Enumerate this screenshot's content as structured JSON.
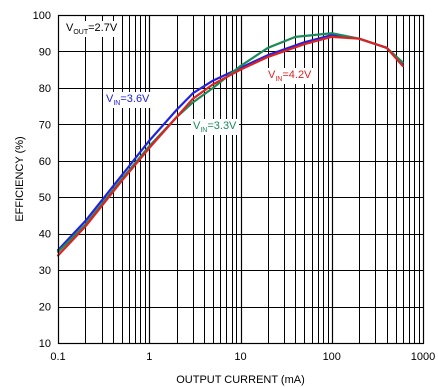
{
  "chart_data": {
    "type": "line",
    "xlabel": "OUTPUT CURRENT (mA)",
    "ylabel": "EFFICIENCY (%)",
    "xscale": "log",
    "xlim": [
      0.1,
      1000
    ],
    "ylim": [
      10,
      100
    ],
    "grid": true,
    "x_ticks": [
      "0.1",
      "1",
      "10",
      "100",
      "1000"
    ],
    "y_ticks": [
      "10",
      "20",
      "30",
      "40",
      "50",
      "60",
      "70",
      "80",
      "90",
      "100"
    ],
    "annotations": [
      {
        "main": "V",
        "sub": "OUT",
        "rest": "=2.7V",
        "color": "#000000"
      },
      {
        "main": "V",
        "sub": "IN",
        "rest": "=3.6V",
        "color": "#2222dd"
      },
      {
        "main": "V",
        "sub": "IN",
        "rest": "=3.3V",
        "color": "#1a8a5a"
      },
      {
        "main": "V",
        "sub": "IN",
        "rest": "=4.2V",
        "color": "#dd2222"
      }
    ],
    "series": [
      {
        "label": "VIN=3.6V",
        "color": "#2222dd",
        "x": [
          0.1,
          0.2,
          0.5,
          1,
          2,
          3,
          5,
          10,
          20,
          50,
          100,
          200,
          400,
          600
        ],
        "y": [
          35.5,
          43.5,
          56,
          65.5,
          74,
          78.5,
          82,
          85.5,
          89,
          92.5,
          94.5,
          93.5,
          91,
          86.5
        ]
      },
      {
        "label": "VIN=3.3V",
        "color": "#1a8a5a",
        "x": [
          0.1,
          0.2,
          0.5,
          1,
          2,
          3,
          5,
          10,
          20,
          40,
          100,
          200,
          400,
          600
        ],
        "y": [
          35,
          42.5,
          55,
          64,
          72,
          76,
          80,
          86,
          91,
          94,
          95,
          93.5,
          91,
          87
        ]
      },
      {
        "label": "VIN=4.2V",
        "color": "#dd2222",
        "x": [
          0.1,
          0.2,
          0.5,
          1,
          2,
          3,
          5,
          10,
          20,
          50,
          100,
          200,
          400,
          600
        ],
        "y": [
          34,
          42,
          54.5,
          63.5,
          72,
          77,
          81,
          85,
          88.5,
          92,
          94,
          93.5,
          91,
          86
        ]
      }
    ]
  }
}
